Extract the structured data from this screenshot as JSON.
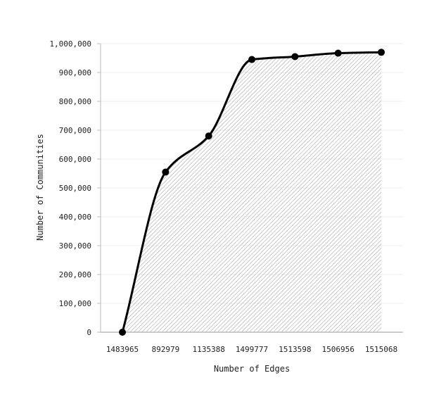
{
  "chart_data": {
    "type": "area",
    "title": "",
    "xlabel": "Number of Edges",
    "ylabel": "Number of Communities",
    "categories": [
      "1483965",
      "892979",
      "1135388",
      "1499777",
      "1513598",
      "1506956",
      "1515068"
    ],
    "series": [
      {
        "values": [
          0,
          555000,
          680000,
          945000,
          955000,
          967000,
          970000
        ]
      }
    ],
    "ylim": [
      0,
      1000000
    ],
    "yticks": [
      "0",
      "100,000",
      "200,000",
      "300,000",
      "400,000",
      "500,000",
      "600,000",
      "700,000",
      "800,000",
      "900,000",
      "1,000,000"
    ],
    "grid": "horizontal",
    "fill_pattern": "diagonal-hatch",
    "colors": {
      "line": "#000000",
      "hatch": "#b0b0b0",
      "grid": "#eeeeee",
      "axis": "#bbbbbb"
    }
  }
}
